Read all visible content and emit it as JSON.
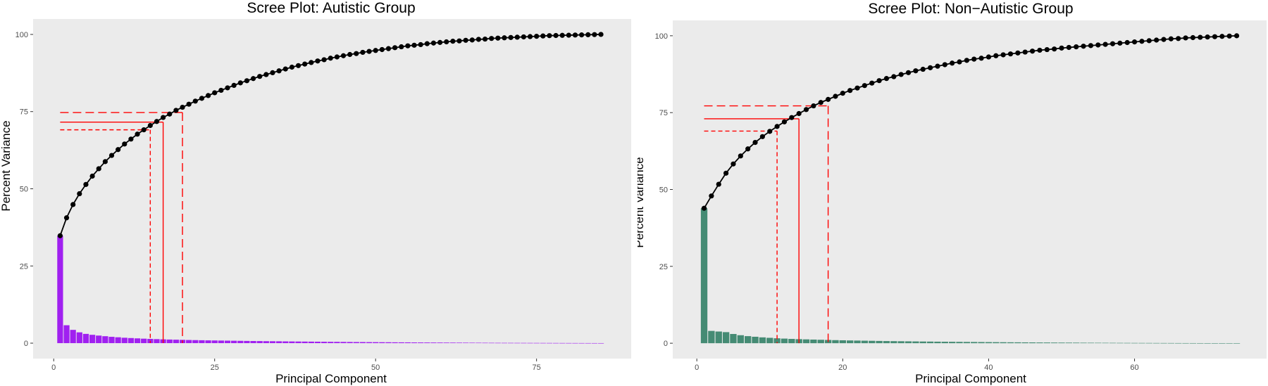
{
  "chart_data": [
    {
      "type": "bar",
      "title": "Scree Plot: Autistic Group",
      "xlabel": "Principal Component",
      "ylabel": "Percent Variance",
      "xlim": [
        -3.2,
        89.7
      ],
      "ylim": [
        -5,
        105
      ],
      "x_ticks": [
        0,
        25,
        50,
        75
      ],
      "y_ticks": [
        0,
        25,
        50,
        75,
        100
      ],
      "grid": false,
      "n_components": 85,
      "bar_color": "#A020F0",
      "cumulative_color": "#000000",
      "threshold_color": "#FF0000",
      "variance": [
        34.8,
        5.8,
        4.3,
        3.5,
        3.0,
        2.7,
        2.45,
        2.25,
        2.05,
        1.9,
        1.75,
        1.65,
        1.55,
        1.45,
        1.38,
        1.3,
        1.23,
        1.17,
        1.12,
        1.07,
        1.02,
        0.98,
        0.94,
        0.9,
        0.87,
        0.84,
        0.81,
        0.78,
        0.75,
        0.72,
        0.69,
        0.67,
        0.64,
        0.62,
        0.6,
        0.57,
        0.55,
        0.53,
        0.51,
        0.49,
        0.47,
        0.45,
        0.43,
        0.42,
        0.4,
        0.38,
        0.36,
        0.35,
        0.33,
        0.32,
        0.3,
        0.29,
        0.27,
        0.26,
        0.25,
        0.23,
        0.22,
        0.21,
        0.2,
        0.19,
        0.18,
        0.17,
        0.16,
        0.15,
        0.14,
        0.13,
        0.12,
        0.11,
        0.1,
        0.095,
        0.09,
        0.085,
        0.08,
        0.075,
        0.07,
        0.065,
        0.06,
        0.055,
        0.05,
        0.045,
        0.04,
        0.035,
        0.03,
        0.025,
        0.02
      ],
      "cumulative": [
        34.8,
        40.6,
        44.9,
        48.4,
        51.4,
        54.1,
        56.5,
        58.8,
        60.8,
        62.7,
        64.5,
        66.1,
        67.7,
        69.1,
        70.5,
        71.8,
        73.1,
        74.2,
        75.4,
        76.4,
        77.4,
        78.4,
        79.3,
        80.2,
        81.1,
        81.9,
        82.7,
        83.5,
        84.3,
        85.0,
        85.7,
        86.4,
        87.0,
        87.6,
        88.2,
        88.8,
        89.4,
        89.9,
        90.4,
        90.9,
        91.4,
        91.8,
        92.3,
        92.7,
        93.1,
        93.5,
        93.8,
        94.2,
        94.5,
        94.8,
        95.1,
        95.4,
        95.7,
        96.0,
        96.3,
        96.5,
        96.7,
        97.0,
        97.2,
        97.4,
        97.6,
        97.8,
        97.9,
        98.1,
        98.2,
        98.4,
        98.5,
        98.7,
        98.8,
        98.9,
        99.0,
        99.1,
        99.2,
        99.3,
        99.4,
        99.5,
        99.6,
        99.65,
        99.7,
        99.75,
        99.8,
        99.85,
        99.9,
        99.95,
        100.0
      ],
      "thresholds": [
        {
          "component": 17,
          "percent": 71.6,
          "style": "solid"
        },
        {
          "component": 15,
          "percent": 69.1,
          "style": "dashed-short"
        },
        {
          "component": 20,
          "percent": 74.7,
          "style": "dashed-long"
        }
      ]
    },
    {
      "type": "bar",
      "title": "Scree Plot: Non−Autistic Group",
      "xlabel": "Principal Component",
      "ylabel": "Percent Variance",
      "xlim": [
        -3.3,
        78.1
      ],
      "ylim": [
        -5,
        105
      ],
      "x_ticks": [
        0,
        20,
        40,
        60
      ],
      "y_ticks": [
        0,
        25,
        50,
        75,
        100
      ],
      "grid": false,
      "n_components": 74,
      "bar_color": "#458B74",
      "cumulative_color": "#000000",
      "threshold_color": "#FF0000",
      "variance": [
        43.9,
        4.0,
        3.8,
        3.6,
        3.0,
        2.6,
        2.3,
        2.1,
        1.9,
        1.75,
        1.6,
        1.5,
        1.4,
        1.32,
        1.25,
        1.18,
        1.12,
        1.06,
        1.0,
        0.95,
        0.9,
        0.86,
        0.82,
        0.78,
        0.74,
        0.7,
        0.67,
        0.64,
        0.61,
        0.58,
        0.55,
        0.53,
        0.5,
        0.48,
        0.46,
        0.44,
        0.42,
        0.4,
        0.38,
        0.36,
        0.34,
        0.32,
        0.3,
        0.29,
        0.27,
        0.26,
        0.24,
        0.23,
        0.21,
        0.2,
        0.19,
        0.18,
        0.16,
        0.15,
        0.14,
        0.13,
        0.12,
        0.11,
        0.1,
        0.09,
        0.085,
        0.08,
        0.07,
        0.065,
        0.06,
        0.05,
        0.045,
        0.04,
        0.035,
        0.03,
        0.025,
        0.02,
        0.015,
        0.01
      ],
      "cumulative": [
        43.9,
        47.9,
        51.7,
        55.3,
        58.3,
        60.9,
        63.2,
        65.3,
        67.2,
        68.9,
        70.5,
        72.0,
        73.4,
        74.7,
        76.0,
        77.2,
        78.3,
        79.3,
        80.3,
        81.3,
        82.2,
        83.0,
        83.8,
        84.6,
        85.4,
        86.1,
        86.7,
        87.4,
        88.0,
        88.6,
        89.1,
        89.6,
        90.1,
        90.6,
        91.1,
        91.5,
        92.0,
        92.4,
        92.7,
        93.1,
        93.5,
        93.8,
        94.1,
        94.4,
        94.7,
        95.0,
        95.3,
        95.5,
        95.7,
        96.0,
        96.2,
        96.4,
        96.6,
        96.8,
        97.0,
        97.2,
        97.4,
        97.6,
        97.8,
        98.0,
        98.2,
        98.4,
        98.6,
        98.8,
        99.0,
        99.1,
        99.3,
        99.4,
        99.5,
        99.6,
        99.7,
        99.8,
        99.9,
        100.0
      ],
      "thresholds": [
        {
          "component": 14,
          "percent": 73.0,
          "style": "solid"
        },
        {
          "component": 11,
          "percent": 69.0,
          "style": "dashed-short"
        },
        {
          "component": 18,
          "percent": 77.2,
          "style": "dashed-long"
        }
      ]
    }
  ]
}
